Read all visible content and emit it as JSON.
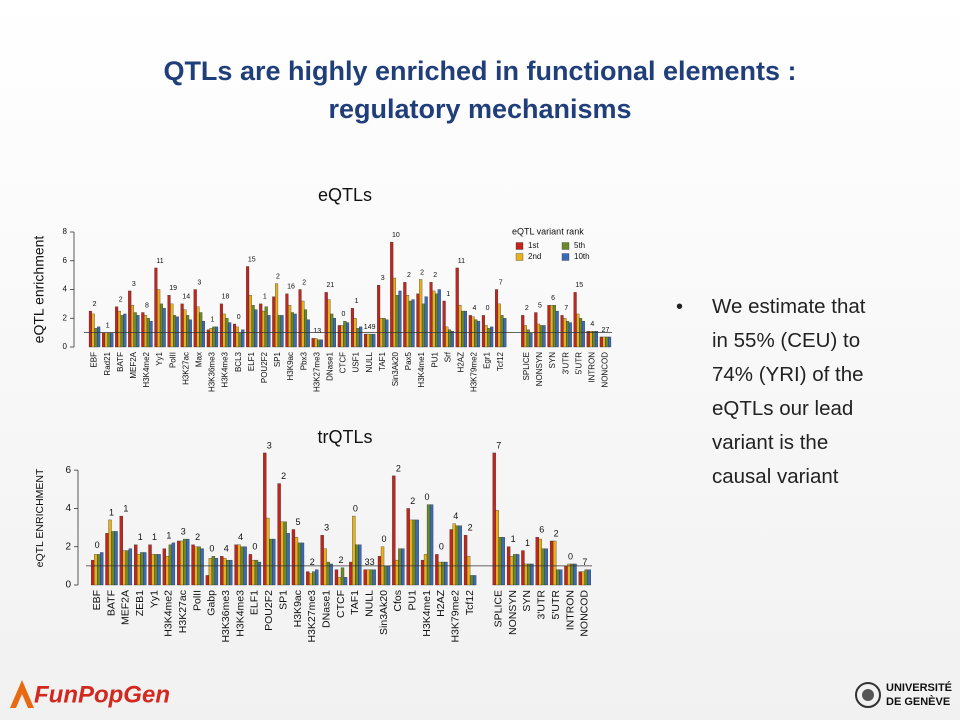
{
  "title": [
    "QTLs are highly enriched in functional elements :",
    "regulatory mechanisms"
  ],
  "bullet": [
    "We estimate that",
    "in 55% (CEU) to",
    "74% (YRI) of the",
    "eQTLs our lead",
    "variant is the",
    "causal variant"
  ],
  "footer": {
    "left": "FunPopGen",
    "right": [
      "UNIVERSITÉ",
      "DE GENÈVE"
    ]
  },
  "chart_data": [
    {
      "type": "bar",
      "title": "eQTLs",
      "y_label": "eQTL enrichment",
      "categories": [
        "EBF",
        "Rad21",
        "BATF",
        "MEF2A",
        "H3K4me2",
        "Yy1",
        "PolII",
        "H3K27ac",
        "Max",
        "H3K36me3",
        "H3K4me3",
        "BCL3",
        "ELF1",
        "POU2F2",
        "SP1",
        "H3K9ac",
        "Pbx3",
        "H3K27me3",
        "DNase1",
        "CTCF",
        "USF1",
        "NULL",
        "TAF1",
        "Sin3Ak20",
        "Pax5",
        "H3K4me1",
        "PU1",
        "Srf",
        "H2AZ",
        "H3K79me2",
        "Egr1",
        "Tcf12",
        null,
        "SPLICE",
        "NONSYN",
        "SYN",
        "3'UTR",
        "5'UTR",
        "INTRON",
        "NONCOD"
      ],
      "annotations": [
        "2",
        "1",
        "2",
        "3",
        "8",
        "11",
        "19",
        "14",
        "3",
        "1",
        "18",
        "0",
        "15",
        "1",
        "2",
        "16",
        "2",
        "13",
        "21",
        "0",
        "1",
        "149",
        "3",
        "10",
        "2",
        "2",
        "2",
        "1",
        "11",
        "4",
        "0",
        "7",
        null,
        "2",
        "5",
        "6",
        "7",
        "15",
        "4",
        "27"
      ],
      "legend_title": "eQTL variant rank",
      "legend": "upper right",
      "series": [
        {
          "name": "1st",
          "color": "#c0261e",
          "values": [
            2.5,
            1.0,
            2.8,
            3.9,
            2.4,
            5.5,
            3.6,
            3.0,
            4.0,
            1.2,
            3.0,
            1.6,
            5.6,
            3.0,
            3.5,
            3.7,
            4.0,
            0.6,
            3.8,
            1.5,
            2.7,
            0.9,
            4.3,
            7.3,
            4.5,
            3.7,
            4.5,
            3.2,
            5.5,
            2.2,
            2.2,
            4.0,
            null,
            2.2,
            2.4,
            2.9,
            2.2,
            3.8,
            1.1,
            0.7
          ]
        },
        {
          "name": "2nd",
          "color": "#e6b020",
          "values": [
            2.3,
            1.0,
            2.5,
            2.9,
            2.2,
            4.0,
            3.0,
            2.6,
            2.8,
            1.3,
            2.3,
            1.4,
            3.6,
            2.5,
            4.4,
            2.9,
            3.2,
            0.6,
            3.3,
            1.5,
            2.0,
            0.9,
            2.0,
            4.8,
            3.6,
            4.7,
            3.9,
            1.4,
            2.9,
            2.1,
            1.5,
            3.0,
            null,
            1.5,
            1.6,
            2.9,
            2.0,
            2.3,
            1.1,
            0.7
          ]
        },
        {
          "name": "5th",
          "color": "#6a8a2a",
          "values": [
            1.3,
            1.0,
            2.2,
            2.4,
            2.0,
            3.0,
            2.2,
            2.2,
            2.4,
            1.4,
            2.0,
            1.0,
            2.9,
            2.8,
            2.2,
            2.4,
            2.6,
            0.5,
            2.3,
            1.8,
            1.3,
            0.9,
            2.0,
            3.6,
            3.2,
            3.0,
            3.7,
            1.2,
            2.5,
            1.9,
            1.3,
            2.2,
            null,
            1.2,
            1.5,
            2.9,
            1.8,
            2.0,
            1.1,
            0.7
          ]
        },
        {
          "name": "10th",
          "color": "#3a6ab8",
          "values": [
            1.4,
            1.0,
            2.3,
            2.2,
            1.8,
            2.7,
            2.1,
            1.9,
            1.8,
            1.4,
            1.7,
            1.2,
            2.6,
            2.2,
            2.2,
            2.3,
            1.9,
            0.5,
            2.0,
            1.7,
            1.4,
            0.9,
            1.9,
            3.9,
            3.3,
            3.5,
            4.0,
            1.1,
            2.5,
            1.8,
            1.4,
            2.0,
            null,
            1.0,
            1.5,
            2.5,
            1.7,
            1.8,
            1.1,
            0.7
          ]
        }
      ],
      "ylim": [
        0,
        8
      ],
      "yticks": [
        0,
        2,
        4,
        6,
        8
      ],
      "hline": 1
    },
    {
      "type": "bar",
      "title": "trQTLs",
      "y_label": "eQTL ENRICHMENT",
      "categories": [
        "EBF",
        "BATF",
        "MEF2A",
        "ZEB1",
        "Yy1",
        "H3K4me2",
        "H3K27ac",
        "PolII",
        "Gabp",
        "H3K36me3",
        "H3K4me3",
        "ELF1",
        "POU2F2",
        "SP1",
        "H3K9ac",
        "H3K27me3",
        "DNase1",
        "CTCF",
        "TAF1",
        "NULL",
        "Sin3Ak20",
        "Cfos",
        "PU1",
        "H3K4me1",
        "H2AZ",
        "H3K79me2",
        "Tcf12",
        null,
        "SPLICE",
        "NONSYN",
        "SYN",
        "3'UTR",
        "5'UTR",
        "INTRON",
        "NONCOD"
      ],
      "annotations": [
        "0",
        "1",
        "1",
        "1",
        "1",
        "1",
        "3",
        "2",
        "0",
        "4",
        "4",
        "0",
        "3",
        "2",
        "5",
        "2",
        "3",
        "2",
        "0",
        "33",
        "0",
        "2",
        "2",
        "0",
        "0",
        "4",
        "2",
        null,
        "7",
        "1",
        "1",
        "6",
        "2",
        "0",
        "7"
      ],
      "series": [
        {
          "color": "#c0261e",
          "values": [
            1.3,
            2.7,
            3.6,
            2.1,
            2.1,
            1.9,
            2.3,
            2.1,
            0.5,
            1.5,
            2.1,
            1.6,
            6.9,
            5.3,
            2.9,
            0.7,
            2.6,
            0.8,
            1.2,
            0.8,
            1.5,
            5.7,
            4.0,
            1.3,
            1.6,
            2.9,
            2.6,
            null,
            6.9,
            2.0,
            1.8,
            2.5,
            2.3,
            1.0,
            0.7
          ]
        },
        {
          "color": "#e6b020",
          "values": [
            1.6,
            3.4,
            1.8,
            1.6,
            1.6,
            1.5,
            2.3,
            2.0,
            1.4,
            1.4,
            2.1,
            1.3,
            3.5,
            3.3,
            2.5,
            0.6,
            1.9,
            0.4,
            3.6,
            0.8,
            2.0,
            1.3,
            3.4,
            1.6,
            1.2,
            3.2,
            1.5,
            null,
            3.9,
            1.5,
            1.1,
            2.4,
            2.3,
            1.1,
            0.7
          ]
        },
        {
          "color": "#6a8a2a",
          "values": [
            1.6,
            2.8,
            1.8,
            1.7,
            1.6,
            2.1,
            2.4,
            2.0,
            1.5,
            1.3,
            2.0,
            1.3,
            2.4,
            3.3,
            2.2,
            0.7,
            1.2,
            0.9,
            2.1,
            0.8,
            1.0,
            1.9,
            3.4,
            4.2,
            1.2,
            3.1,
            0.5,
            null,
            2.5,
            1.6,
            1.1,
            1.9,
            0.8,
            1.1,
            0.8
          ]
        },
        {
          "color": "#3a6ab8",
          "values": [
            1.7,
            2.8,
            1.9,
            1.7,
            1.6,
            2.2,
            2.4,
            1.9,
            1.4,
            1.3,
            2.0,
            1.2,
            2.4,
            2.7,
            2.2,
            0.8,
            1.1,
            0.4,
            2.1,
            0.8,
            1.0,
            1.9,
            3.4,
            4.2,
            1.2,
            3.1,
            0.5,
            null,
            2.5,
            1.6,
            1.1,
            1.9,
            0.8,
            1.1,
            0.8
          ]
        }
      ],
      "ylim": [
        0,
        7
      ],
      "yticks": [
        0,
        2,
        4,
        6
      ],
      "hline": 1
    }
  ]
}
